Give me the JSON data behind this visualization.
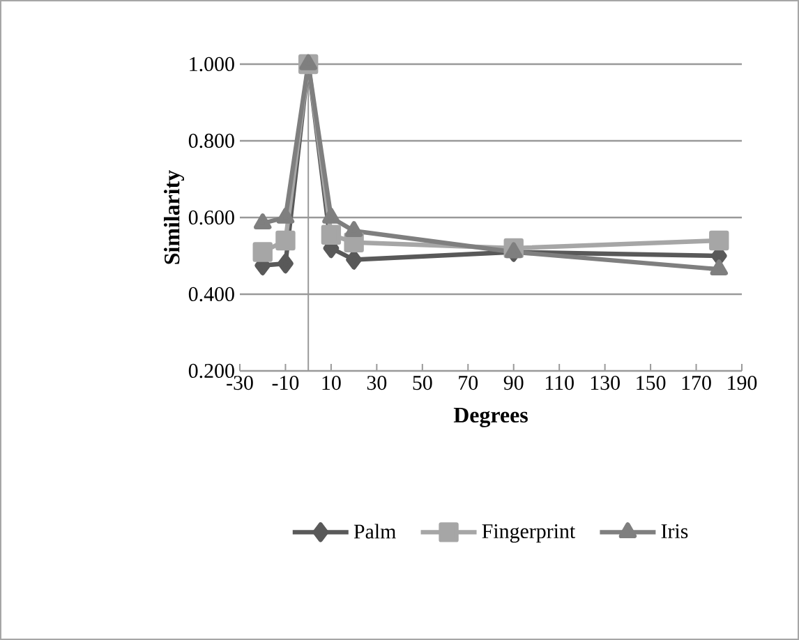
{
  "chart_data": {
    "type": "line",
    "xlabel": "Degrees",
    "ylabel": "Similarity",
    "x": [
      -20,
      -10,
      0,
      10,
      20,
      90,
      180
    ],
    "series": [
      {
        "name": "Palm",
        "color": "#595959",
        "marker": "diamond",
        "values": [
          0.475,
          0.48,
          1.0,
          0.52,
          0.49,
          0.51,
          0.5
        ]
      },
      {
        "name": "Fingerprint",
        "color": "#a6a6a6",
        "marker": "square",
        "values": [
          0.51,
          0.54,
          1.0,
          0.555,
          0.535,
          0.52,
          0.54
        ]
      },
      {
        "name": "Iris",
        "color": "#7f7f7f",
        "marker": "triangle",
        "values": [
          0.585,
          0.6,
          1.0,
          0.6,
          0.565,
          0.51,
          0.465
        ]
      }
    ],
    "xlim": [
      -30,
      190
    ],
    "xticks": [
      -30,
      -10,
      10,
      30,
      50,
      70,
      90,
      110,
      130,
      150,
      170,
      190
    ],
    "ylim": [
      0.2,
      1.0
    ],
    "yticks": [
      {
        "value": 0.2,
        "label": "0.200"
      },
      {
        "value": 0.4,
        "label": "0.400"
      },
      {
        "value": 0.6,
        "label": "0.600"
      },
      {
        "value": 0.8,
        "label": "0.800"
      },
      {
        "value": 1.0,
        "label": "1.000"
      }
    ],
    "grid": "y",
    "legend": "bottom",
    "line_style": "solid"
  }
}
